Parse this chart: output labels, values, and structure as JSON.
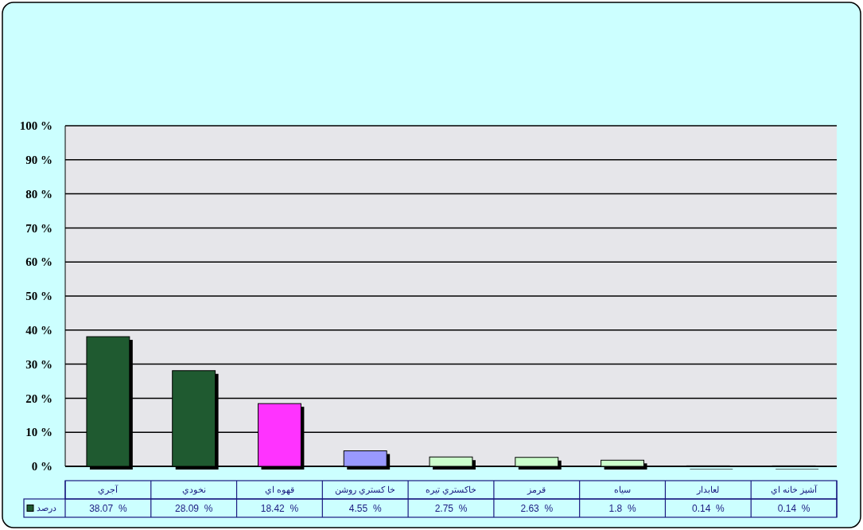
{
  "chart_data": {
    "type": "bar",
    "categories": [
      "آجري",
      "نخودي",
      "قهوه اي",
      "خا کستري روشن",
      "خاکستري تيره",
      "قرمز",
      "سياه",
      "لعابدار",
      "آشپز خانه اي"
    ],
    "series": [
      {
        "name": "درصد",
        "color": "#1f5a30",
        "values": [
          38.07,
          28.09,
          18.42,
          4.55,
          2.75,
          2.63,
          1.8,
          0.14,
          0.14
        ],
        "colors": [
          "#1f5a30",
          "#1f5a30",
          "#ff33ff",
          "#9999ff",
          "#ccffcc",
          "#ccffcc",
          "#ccffcc",
          "#ccffcc",
          "#ccffcc"
        ],
        "value_labels": [
          "38.07  %",
          "28.09  %",
          "18.42  %",
          "4.55  %",
          "2.75  %",
          "2.63  %",
          "1.8  %",
          "0.14  %",
          "0.14  %"
        ]
      }
    ],
    "ylim": [
      0,
      100
    ],
    "yticks": [
      {
        "value": 0,
        "label": "0  %"
      },
      {
        "value": 10,
        "label": "10  %"
      },
      {
        "value": 20,
        "label": "20  %"
      },
      {
        "value": 30,
        "label": "30  %"
      },
      {
        "value": 40,
        "label": "40  %"
      },
      {
        "value": 50,
        "label": "50  %"
      },
      {
        "value": 60,
        "label": "60  %"
      },
      {
        "value": 70,
        "label": "70  %"
      },
      {
        "value": 80,
        "label": "80  %"
      },
      {
        "value": 90,
        "label": "90  %"
      },
      {
        "value": 100,
        "label": "100  %"
      }
    ],
    "grid": "y",
    "legend": "bottom left"
  }
}
